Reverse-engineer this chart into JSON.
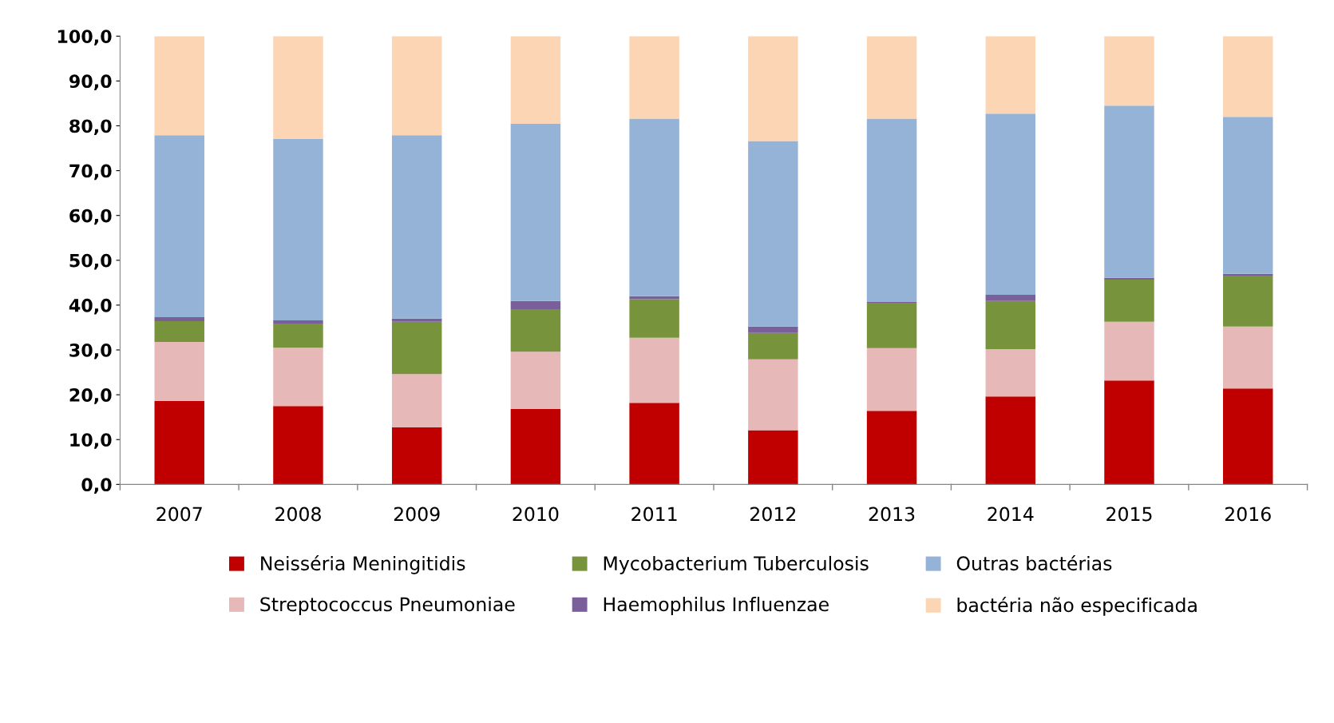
{
  "chart_data": {
    "type": "bar",
    "stacked": true,
    "categories": [
      "2007",
      "2008",
      "2009",
      "2010",
      "2011",
      "2012",
      "2013",
      "2014",
      "2015",
      "2016"
    ],
    "series": [
      {
        "name": "Neisséria Meningitidis",
        "color": "#c00000",
        "values": [
          18.6,
          17.5,
          12.7,
          16.8,
          18.2,
          12.1,
          16.4,
          19.6,
          23.2,
          21.4
        ]
      },
      {
        "name": "Streptococcus Pneumoniae",
        "color": "#e6b9b8",
        "values": [
          13.2,
          13.0,
          11.9,
          12.8,
          14.5,
          15.8,
          14.0,
          10.6,
          13.1,
          13.8
        ]
      },
      {
        "name": "Mycobacterium Tuberculosis",
        "color": "#77933c",
        "values": [
          4.6,
          5.4,
          11.7,
          9.5,
          8.6,
          5.9,
          10.1,
          10.7,
          9.4,
          11.4
        ]
      },
      {
        "name": "Haemophilus Influenzae",
        "color": "#7a5f9a",
        "values": [
          0.9,
          0.7,
          0.7,
          1.8,
          0.7,
          1.4,
          0.2,
          1.4,
          0.4,
          0.4
        ]
      },
      {
        "name": "Outras bactérias",
        "color": "#95b3d7",
        "values": [
          40.6,
          40.5,
          40.9,
          39.6,
          39.6,
          41.4,
          40.9,
          40.4,
          38.4,
          35.0
        ]
      },
      {
        "name": "bactéria não especificada",
        "color": "#fcd5b5",
        "values": [
          22.1,
          22.9,
          22.1,
          19.5,
          18.4,
          23.4,
          18.4,
          17.3,
          15.5,
          18.0
        ]
      }
    ],
    "ylim": [
      0,
      100
    ],
    "yticks": [
      {
        "value": 0,
        "label": "0,0"
      },
      {
        "value": 10,
        "label": "10,0"
      },
      {
        "value": 20,
        "label": "20,0"
      },
      {
        "value": 30,
        "label": "30,0"
      },
      {
        "value": 40,
        "label": "40,0"
      },
      {
        "value": 50,
        "label": "50,0"
      },
      {
        "value": 60,
        "label": "60,0"
      },
      {
        "value": 70,
        "label": "70,0"
      },
      {
        "value": 80,
        "label": "80,0"
      },
      {
        "value": 90,
        "label": "90,0"
      },
      {
        "value": 100,
        "label": "100,0"
      }
    ],
    "grid": false,
    "legend": "bottom"
  }
}
